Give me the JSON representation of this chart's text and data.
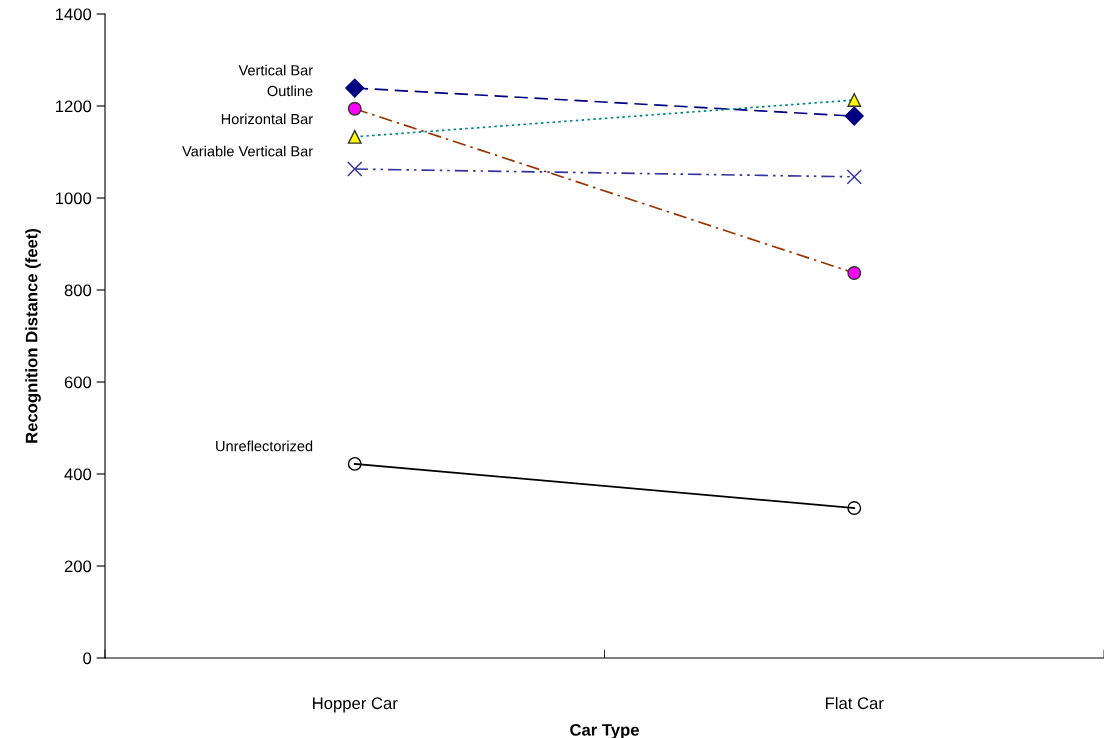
{
  "chart_data": {
    "type": "line",
    "xlabel": "Car Type",
    "ylabel": "Recognition Distance (feet)",
    "categories": [
      "Hopper Car",
      "Flat Car"
    ],
    "ylim": [
      0,
      1400
    ],
    "yticks": [
      0,
      200,
      400,
      600,
      800,
      1000,
      1200,
      1400
    ],
    "grid": false,
    "series": [
      {
        "name": "Vertical Bar",
        "color": "#000080",
        "colors": [
          "#000080",
          "#000080"
        ],
        "marker": "diamond",
        "line_style": "dashed",
        "values": [
          1239,
          1178
        ]
      },
      {
        "name": "Outline",
        "color": "#993300",
        "colors": [
          "#ff00ff",
          "#ff00ff"
        ],
        "marker": "circle",
        "line_style": "dashdot",
        "values": [
          1194,
          837
        ]
      },
      {
        "name": "Horizontal Bar",
        "color": "#008080",
        "colors": [
          "#ffff00",
          "#ffff00"
        ],
        "marker": "triangle",
        "line_style": "dotted",
        "values": [
          1133,
          1213
        ]
      },
      {
        "name": "Variable Vertical Bar",
        "color": "#333399",
        "colors": [
          "#333399",
          "#333399"
        ],
        "marker": "cross",
        "line_style": "dashdotdot",
        "values": [
          1063,
          1046
        ]
      },
      {
        "name": "Unreflectorized",
        "color": "#000000",
        "colors": [
          "none",
          "none"
        ],
        "marker": "circle",
        "line_style": "solid",
        "values": [
          422,
          326
        ]
      }
    ]
  }
}
